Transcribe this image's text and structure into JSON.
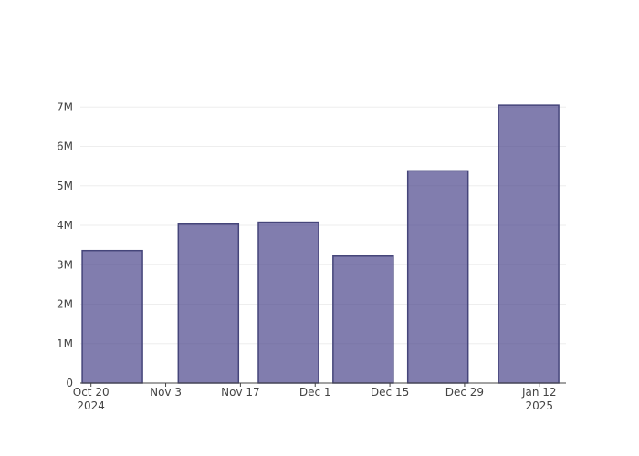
{
  "chart_data": {
    "type": "bar",
    "x": [
      "2024-10-24",
      "2024-11-11",
      "2024-11-26",
      "2024-12-10",
      "2024-12-24",
      "2025-01-10"
    ],
    "values": [
      3360000,
      4030000,
      4080000,
      3220000,
      5380000,
      7050000
    ],
    "color": "rgba(75,70,140,0.7)",
    "edge_color": "#45457a",
    "xlim": [
      "2024-10-18",
      "2025-01-17"
    ],
    "xticks": [
      {
        "value": "2024-10-20",
        "label": "Oct 20\n2024"
      },
      {
        "value": "2024-11-03",
        "label": "Nov 3"
      },
      {
        "value": "2024-11-17",
        "label": "Nov 17"
      },
      {
        "value": "2024-12-01",
        "label": "Dec 1"
      },
      {
        "value": "2024-12-15",
        "label": "Dec 15"
      },
      {
        "value": "2024-12-29",
        "label": "Dec 29"
      },
      {
        "value": "2025-01-12",
        "label": "Jan 12\n2025"
      }
    ],
    "ylim": [
      0,
      7400000
    ],
    "yticks": [
      0,
      {
        "value": 1000000,
        "label": "1M"
      },
      {
        "value": 2000000,
        "label": "2M"
      },
      {
        "value": 3000000,
        "label": "3M"
      },
      {
        "value": 4000000,
        "label": "4M"
      },
      {
        "value": 5000000,
        "label": "5M"
      },
      {
        "value": 6000000,
        "label": "6M"
      },
      {
        "value": 7000000,
        "label": "7M"
      }
    ],
    "grid": true
  }
}
